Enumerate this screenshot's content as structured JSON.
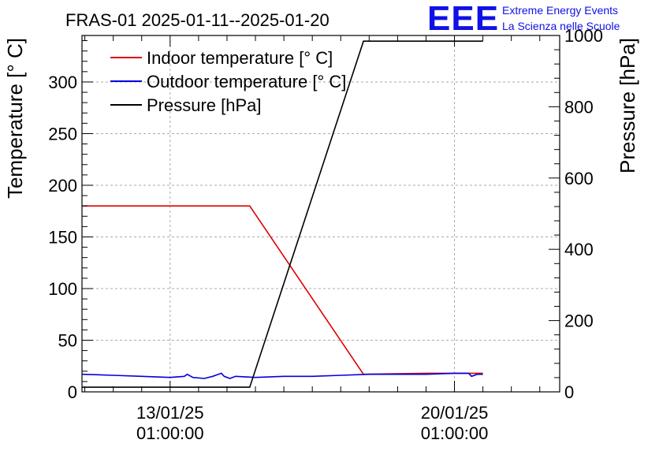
{
  "chart_data": {
    "type": "line",
    "title": "FRAS-01 2025-01-11--2025-01-20",
    "ylabel": "Temperature [° C]",
    "ylabel_right": "Pressure [hPa]",
    "ylim": [
      0,
      345
    ],
    "ylim_right": [
      0,
      1000
    ],
    "yticks": [
      0,
      50,
      100,
      150,
      200,
      250,
      300
    ],
    "yticks_right": [
      0,
      200,
      400,
      600,
      800,
      1000
    ],
    "xlim": [
      -3.1,
      13.7
    ],
    "xticks": [
      {
        "day": 0,
        "line1": "13/01/25",
        "line2": "01:00:00"
      },
      {
        "day": 10,
        "line1": "20/01/25",
        "line2": "01:00:00"
      }
    ],
    "grid": true,
    "legend_position": "top-left",
    "series": [
      {
        "name": "Indoor temperature [° C]",
        "color": "#e00000",
        "axis": "left",
        "x": [
          -3.1,
          2.8,
          6.8,
          9.0,
          10.5,
          11.0
        ],
        "y": [
          180,
          180,
          17,
          18,
          18,
          18
        ]
      },
      {
        "name": "Outdoor temperature [° C]",
        "color": "#0000e0",
        "axis": "left",
        "x": [
          -3.1,
          -2.0,
          -1.0,
          0.0,
          0.5,
          0.6,
          0.8,
          1.2,
          1.5,
          1.8,
          1.9,
          2.1,
          2.3,
          3.0,
          4.0,
          5.0,
          6.0,
          7.0,
          8.0,
          9.0,
          10.0,
          10.5,
          10.6,
          10.8,
          11.0
        ],
        "y": [
          17,
          16,
          15,
          14,
          15,
          17,
          14,
          13,
          15,
          18,
          15,
          13,
          15,
          14,
          15,
          15,
          16,
          17,
          17,
          17,
          18,
          18,
          15,
          17,
          17
        ]
      },
      {
        "name": "Pressure [hPa]",
        "color": "#000000",
        "axis": "right",
        "x": [
          -3.1,
          2.8,
          6.8,
          11.0
        ],
        "y": [
          13,
          13,
          984,
          984
        ]
      }
    ]
  },
  "logo": {
    "text": "EEE",
    "line1": "Extreme Energy Events",
    "line2": "La Scienza nelle Scuole"
  }
}
